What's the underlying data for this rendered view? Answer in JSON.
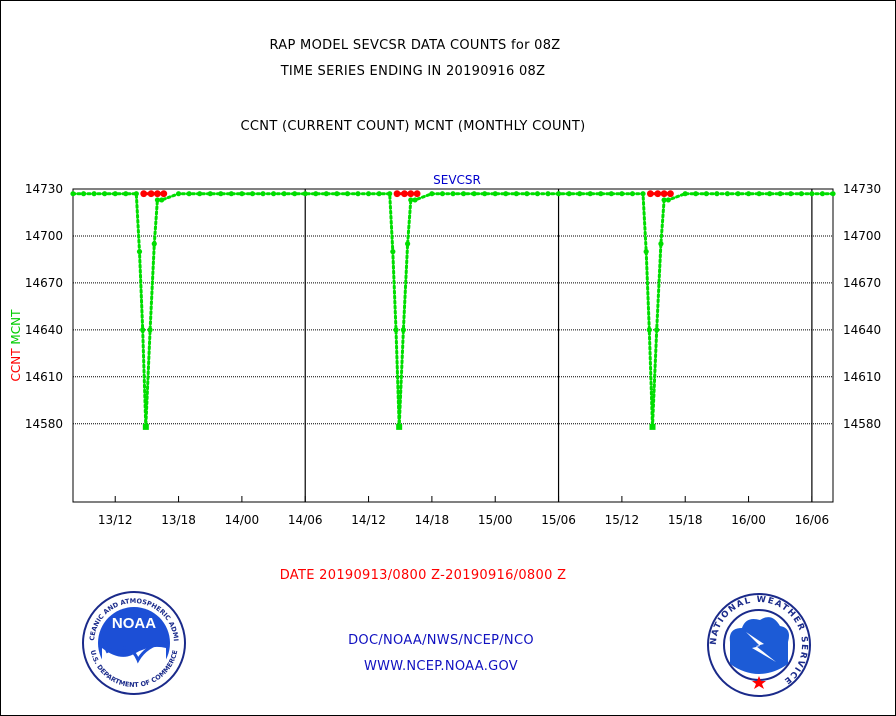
{
  "header": {
    "title_line1": "RAP MODEL SEVCSR DATA COUNTS for 08Z",
    "title_line2": "TIME SERIES ENDING IN 20190916 08Z",
    "title_line3": "CCNT (CURRENT COUNT) MCNT (MONTHLY COUNT)"
  },
  "chart_data": {
    "type": "line",
    "title": "SEVCSR",
    "ylabel_parts": [
      {
        "text": "CCNT",
        "color": "#ff0000"
      },
      {
        "text": "MCNT",
        "color": "#00cc00"
      }
    ],
    "xlabel": "DATE 20190913/0800 Z-20190916/0800 Z",
    "x_unit": "hours from 2019-09-13 08Z",
    "xlim": [
      0,
      72
    ],
    "ylim": [
      14530,
      14730
    ],
    "yticks": [
      14730,
      14700,
      14670,
      14640,
      14610,
      14580
    ],
    "xticks": [
      {
        "x": 4,
        "label": "13/12"
      },
      {
        "x": 10,
        "label": "13/18"
      },
      {
        "x": 16,
        "label": "14/00"
      },
      {
        "x": 22,
        "label": "14/06"
      },
      {
        "x": 28,
        "label": "14/12"
      },
      {
        "x": 34,
        "label": "14/18"
      },
      {
        "x": 40,
        "label": "15/00"
      },
      {
        "x": 46,
        "label": "15/06"
      },
      {
        "x": 52,
        "label": "15/12"
      },
      {
        "x": 58,
        "label": "15/18"
      },
      {
        "x": 64,
        "label": "16/00"
      },
      {
        "x": 70,
        "label": "16/06"
      }
    ],
    "day_separators": [
      22,
      46,
      70
    ],
    "grid": true,
    "series": [
      {
        "name": "CCNT",
        "color": "#ff0000",
        "points": [
          [
            6.7,
            14727
          ],
          [
            7.4,
            14727
          ],
          [
            8.0,
            14727
          ],
          [
            8.6,
            14727
          ],
          [
            30.7,
            14727
          ],
          [
            31.4,
            14727
          ],
          [
            32.0,
            14727
          ],
          [
            32.6,
            14727
          ],
          [
            54.7,
            14727
          ],
          [
            55.4,
            14727
          ],
          [
            56.0,
            14727
          ],
          [
            56.6,
            14727
          ]
        ]
      },
      {
        "name": "MCNT",
        "color": "#00dd00",
        "baseline": 14727,
        "dip_points": [
          [
            6.0,
            14727
          ],
          [
            6.3,
            14690
          ],
          [
            6.6,
            14640
          ],
          [
            6.9,
            14578
          ],
          [
            7.3,
            14640
          ],
          [
            7.7,
            14695
          ],
          [
            8.0,
            14723
          ],
          [
            8.4,
            14723
          ],
          [
            30.0,
            14727
          ],
          [
            30.3,
            14690
          ],
          [
            30.6,
            14640
          ],
          [
            30.9,
            14578
          ],
          [
            31.3,
            14640
          ],
          [
            31.7,
            14695
          ],
          [
            32.0,
            14723
          ],
          [
            32.4,
            14723
          ],
          [
            54.0,
            14727
          ],
          [
            54.3,
            14690
          ],
          [
            54.6,
            14640
          ],
          [
            54.9,
            14578
          ],
          [
            55.3,
            14640
          ],
          [
            55.7,
            14695
          ],
          [
            56.0,
            14723
          ],
          [
            56.4,
            14723
          ]
        ]
      }
    ]
  },
  "footer": {
    "link1": "DOC/NOAA/NWS/NCEP/NCO",
    "link2": "WWW.NCEP.NOAA.GOV",
    "noaa_logo_text": "NOAA",
    "noaa_ring_text": "NATIONAL OCEANIC AND ATMOSPHERIC ADMINISTRATION",
    "noaa_ring_text2": "U.S. DEPARTMENT OF COMMERCE",
    "nws_ring_text": "NATIONAL WEATHER SERVICE"
  },
  "colors": {
    "red": "#ff0000",
    "green": "#00dd00",
    "blue": "#1010c0",
    "title_blue": "#0000cc"
  }
}
